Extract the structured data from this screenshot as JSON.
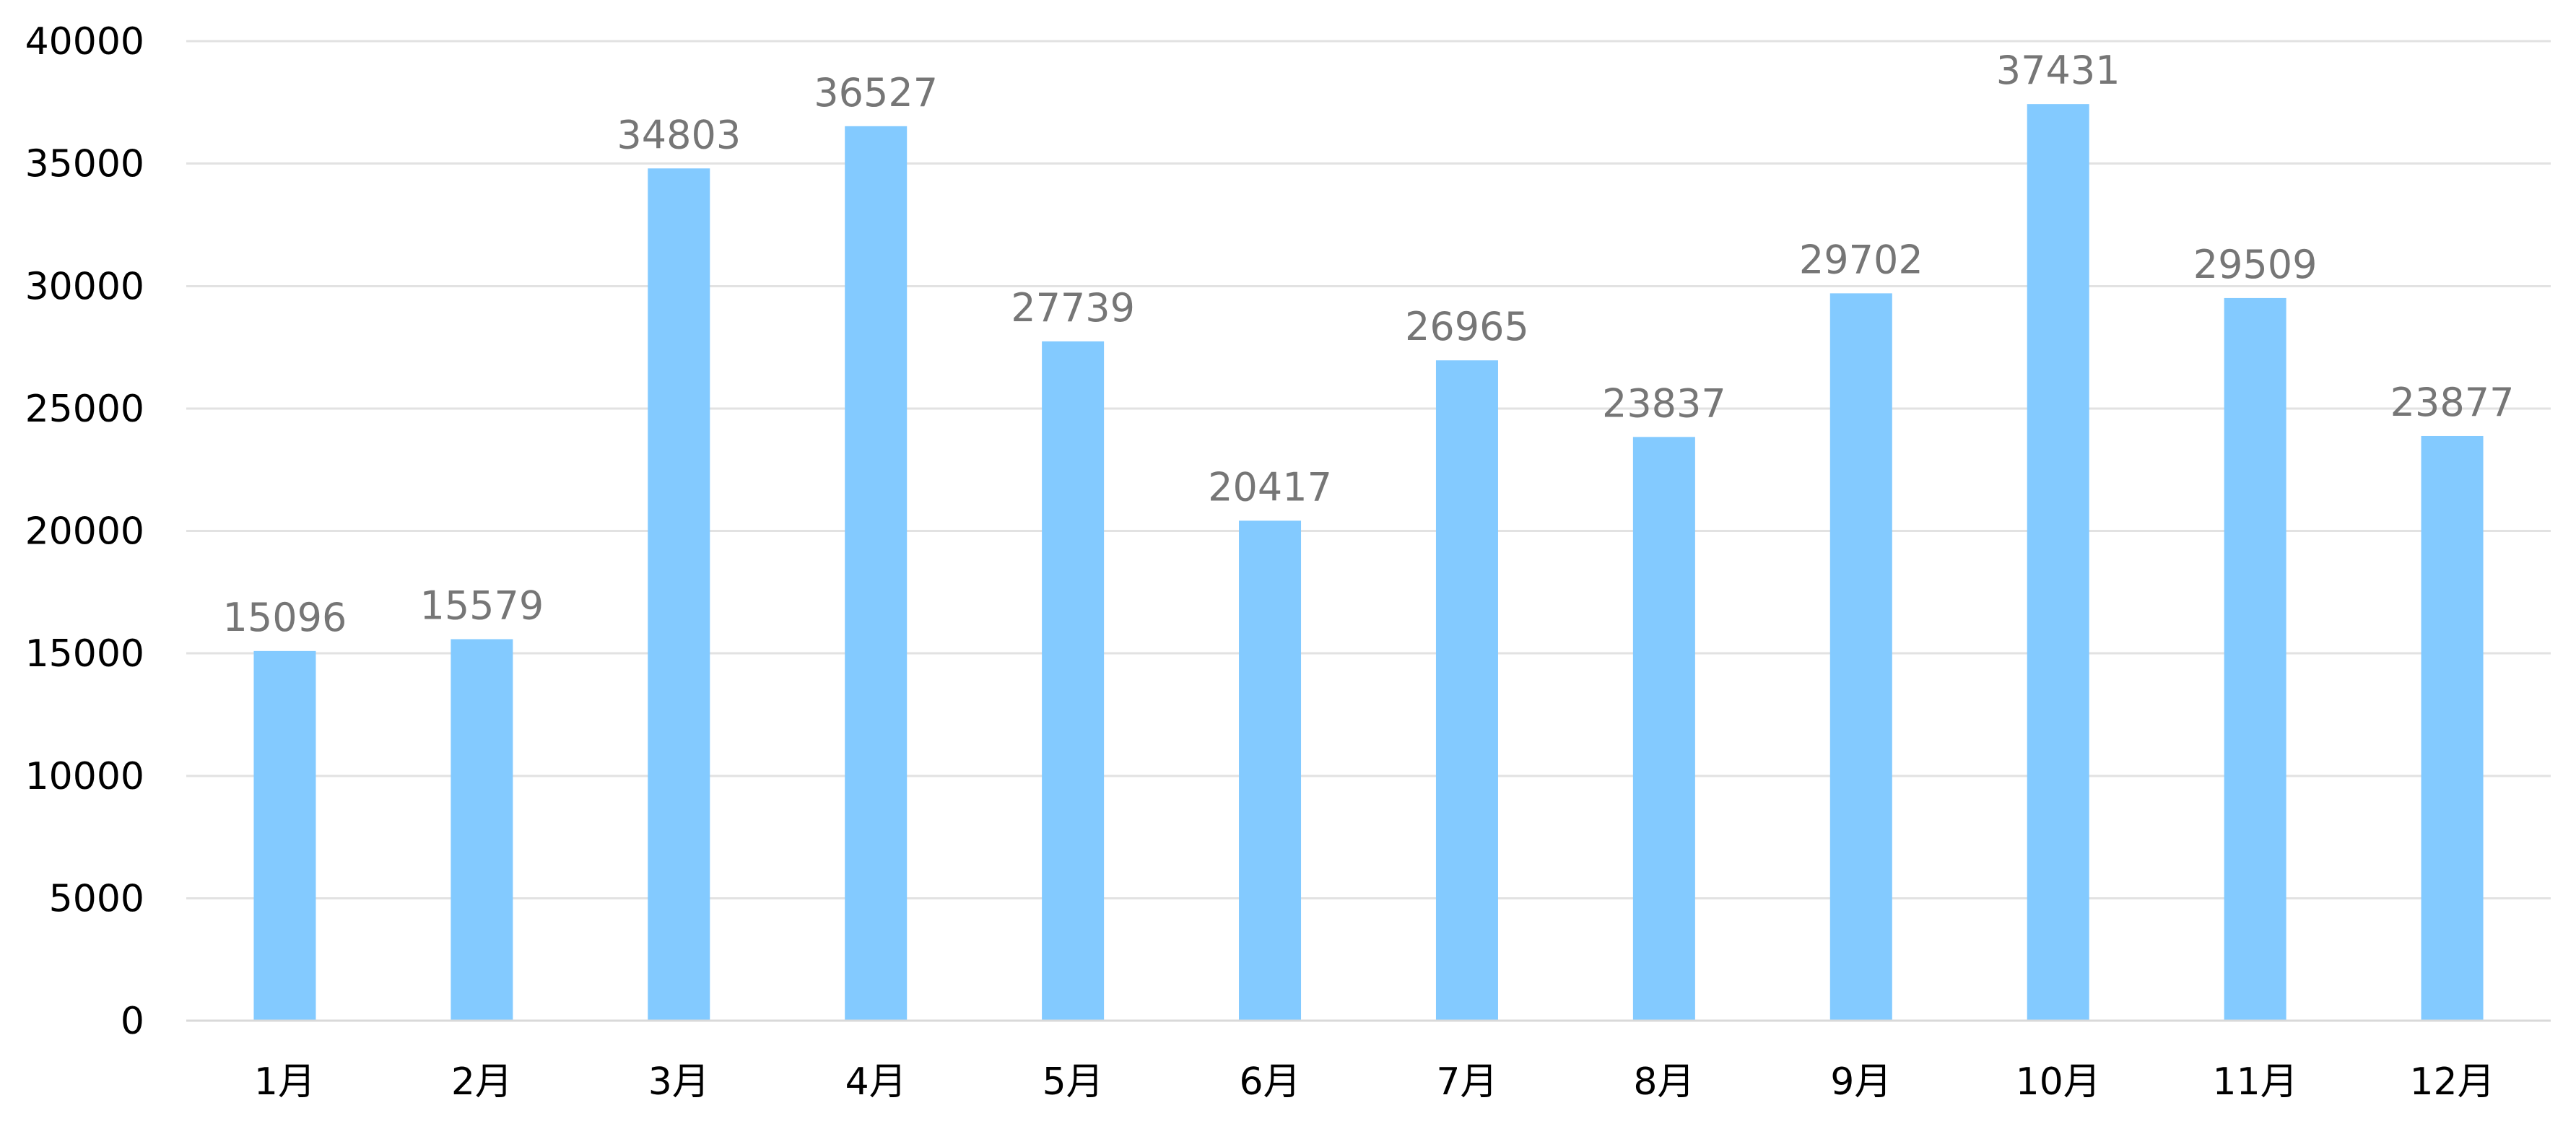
{
  "chart_data": {
    "type": "bar",
    "title": "",
    "xlabel": "",
    "ylabel": "",
    "categories": [
      "1月",
      "2月",
      "3月",
      "4月",
      "5月",
      "6月",
      "7月",
      "8月",
      "9月",
      "10月",
      "11月",
      "12月"
    ],
    "values": [
      15096,
      15579,
      34803,
      36527,
      27739,
      20417,
      26965,
      23837,
      29702,
      37431,
      29509,
      23877
    ],
    "ylim": [
      0,
      40000
    ],
    "yticks": [
      0,
      5000,
      10000,
      15000,
      20000,
      25000,
      30000,
      35000,
      40000
    ],
    "data_labels": true,
    "grid": true,
    "legend": "none",
    "bar_color": "#83caff",
    "label_color": "#767676",
    "grid_color": "#e2e2e2"
  }
}
